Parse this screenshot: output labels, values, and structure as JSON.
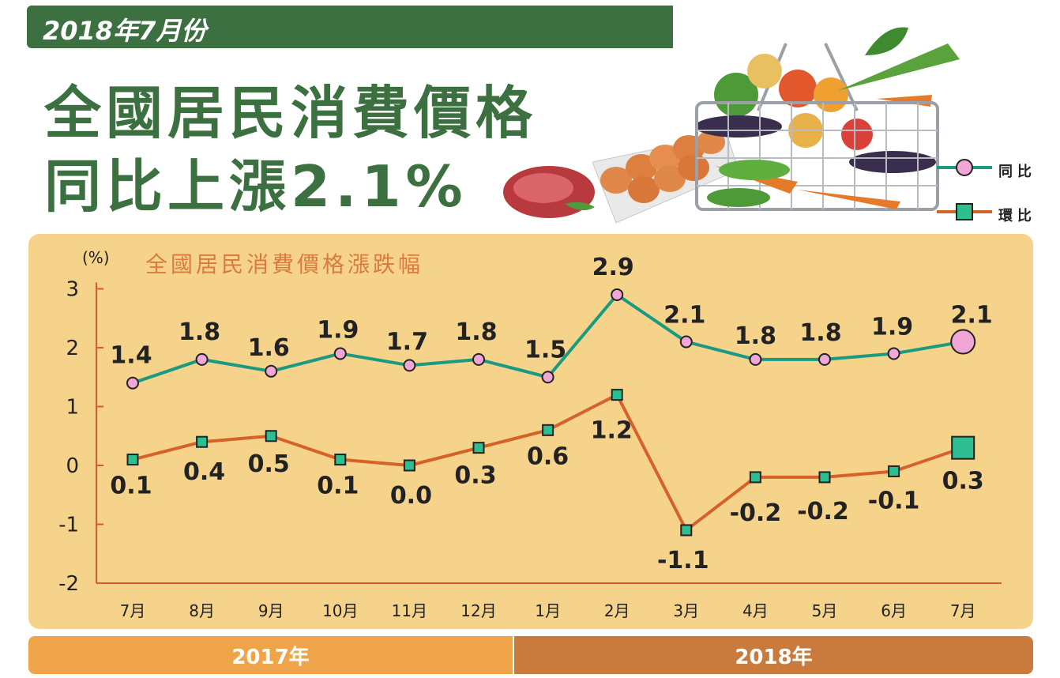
{
  "banner": "2018年7月份",
  "headline": {
    "line1": "全國居民消費價格",
    "line2": "同比上漲2.1%"
  },
  "legend": {
    "yoy": "同比",
    "mom": "環比"
  },
  "years": [
    "2017年",
    "2018年"
  ],
  "colors": {
    "yoy_line": "#1a9a80",
    "yoy_marker": "#f1a7d6",
    "mom_line": "#d4622a",
    "mom_marker": "#2dbf8f",
    "axis": "#d95a2b",
    "title": "#d97b3f",
    "headline": "#3c7040"
  },
  "chart_data": {
    "type": "line",
    "title": "全國居民消費價格漲跌幅",
    "ylabel": "(%)",
    "xlabel": "",
    "ylim": [
      -2,
      3
    ],
    "yticks": [
      3,
      2,
      1,
      0,
      -1,
      -2
    ],
    "categories": [
      "7月",
      "8月",
      "9月",
      "10月",
      "11月",
      "12月",
      "1月",
      "2月",
      "3月",
      "4月",
      "5月",
      "6月",
      "7月"
    ],
    "series": [
      {
        "name": "同比",
        "values": [
          1.4,
          1.8,
          1.6,
          1.9,
          1.7,
          1.8,
          1.5,
          2.9,
          2.1,
          1.8,
          1.8,
          1.9,
          2.1
        ],
        "labels": [
          "1.4",
          "1.8",
          "1.6",
          "1.9",
          "1.7",
          "1.8",
          "1.5",
          "2.9",
          "2.1",
          "1.8",
          "1.8",
          "1.9",
          "2.1"
        ]
      },
      {
        "name": "環比",
        "values": [
          0.1,
          0.4,
          0.5,
          0.1,
          0.0,
          0.3,
          0.6,
          1.2,
          -1.1,
          -0.2,
          -0.2,
          -0.1,
          0.3
        ],
        "labels": [
          "0.1",
          "0.4",
          "0.5",
          "0.1",
          "0.0",
          "0.3",
          "0.6",
          "1.2",
          "-1.1",
          "-0.2",
          "-0.2",
          "-0.1",
          "0.3"
        ]
      }
    ],
    "grid": false,
    "legend_position": "top-right"
  }
}
